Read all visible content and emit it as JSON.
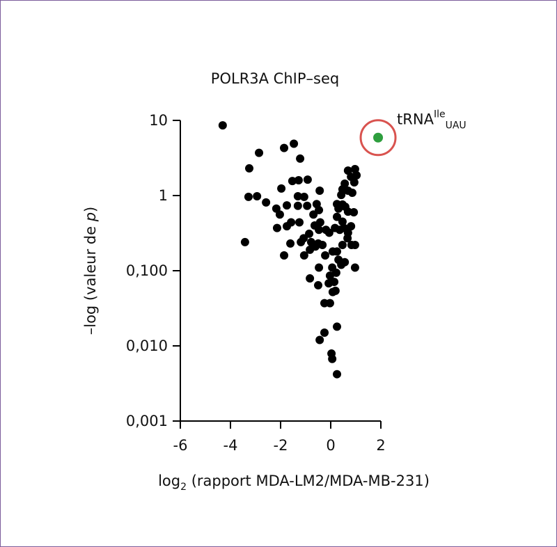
{
  "chart_data": {
    "type": "scatter",
    "title": "POLR3A ChIP–seq",
    "xlabel": [
      "log",
      "2",
      " (rapport MDA-LM2/MDA-MB-231)"
    ],
    "ylabel": [
      "–log (valeur de ",
      "p",
      ")"
    ],
    "color": "#000000",
    "x": [
      -4.31,
      -1.47,
      -1.86,
      -2.86,
      -1.22,
      -3.25,
      0.69,
      0.97,
      1.03,
      0.81,
      0.56,
      0.94,
      -1.28,
      -1.53,
      -0.92,
      -1.97,
      -0.44,
      0.47,
      0.69,
      0.86,
      0.42,
      -3.28,
      -2.94,
      -1.31,
      -1.06,
      -2.58,
      -2.17,
      -1.75,
      -1.31,
      -0.94,
      -0.56,
      -0.47,
      -0.69,
      -2.03,
      0.25,
      0.31,
      0.47,
      0.58,
      0.69,
      0.92,
      0.25,
      -1.58,
      -2.14,
      -1.75,
      -1.25,
      -0.64,
      -0.42,
      -0.47,
      -0.86,
      -0.19,
      -0.06,
      0.17,
      0.36,
      0.47,
      0.53,
      0.81,
      0.69,
      0.67,
      0.83,
      0.97,
      0.47,
      -1.08,
      -1.19,
      -0.78,
      -0.5,
      -0.33,
      -0.61,
      -1.61,
      -0.83,
      -3.42,
      -1.86,
      -1.06,
      -0.22,
      0.08,
      0.25,
      0.31,
      0.42,
      0.56,
      0.97,
      -0.47,
      0.06,
      0.22,
      -0.03,
      -0.83,
      -0.08,
      -0.5,
      0.14,
      0.19,
      0.08,
      -0.25,
      -0.03,
      0.25,
      -0.25,
      -0.44,
      0.03,
      0.06,
      0.25
    ],
    "y": [
      8.6,
      4.9,
      4.3,
      3.7,
      3.1,
      2.3,
      2.15,
      2.25,
      1.86,
      1.78,
      1.44,
      1.5,
      1.6,
      1.56,
      1.63,
      1.24,
      1.16,
      1.21,
      1.16,
      1.09,
      1.02,
      0.96,
      0.98,
      0.98,
      0.96,
      0.81,
      0.67,
      0.74,
      0.73,
      0.73,
      0.77,
      0.64,
      0.56,
      0.56,
      0.77,
      0.67,
      0.76,
      0.71,
      0.61,
      0.6,
      0.52,
      0.44,
      0.37,
      0.39,
      0.44,
      0.4,
      0.44,
      0.35,
      0.31,
      0.35,
      0.32,
      0.37,
      0.35,
      0.45,
      0.37,
      0.39,
      0.32,
      0.27,
      0.22,
      0.22,
      0.22,
      0.27,
      0.24,
      0.24,
      0.23,
      0.22,
      0.21,
      0.23,
      0.19,
      0.24,
      0.16,
      0.16,
      0.16,
      0.18,
      0.18,
      0.14,
      0.12,
      0.13,
      0.11,
      0.11,
      0.11,
      0.094,
      0.086,
      0.079,
      0.068,
      0.064,
      0.071,
      0.054,
      0.052,
      0.037,
      0.037,
      0.018,
      0.015,
      0.012,
      0.0079,
      0.0067,
      0.0042
    ],
    "xlim": [
      -6,
      2
    ],
    "ylim": [
      0.001,
      10
    ],
    "yscale": "log",
    "xticks": [
      -6,
      -4,
      -2,
      0,
      2
    ],
    "yticks": [
      10,
      1,
      {
        "value": 0.1,
        "label": "0,100"
      },
      {
        "value": 0.01,
        "label": "0,010"
      },
      {
        "value": 0.001,
        "label": "0,001"
      }
    ],
    "annotation": {
      "label": [
        "tRNA",
        "Ile",
        "UAU"
      ],
      "x": 1.89,
      "y": 5.9,
      "color": "#2e9e3e",
      "ring_color": "#d9534f"
    }
  }
}
